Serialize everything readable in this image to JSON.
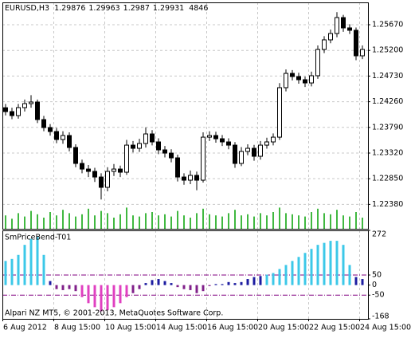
{
  "chart_data": [
    {
      "type": "candlestick",
      "title": "EURUSD,H3",
      "last_bar": {
        "open": 1.29876,
        "high": 1.29963,
        "low": 1.2987,
        "close": 1.29931,
        "volume": 4846
      },
      "open": [
        1.2415,
        1.24079,
        1.24006,
        1.24152,
        1.24225,
        1.24254,
        1.23933,
        1.23787,
        1.23714,
        1.23568,
        1.23641,
        1.23422,
        1.2313,
        1.23027,
        1.22984,
        1.22881,
        1.22692,
        1.22984,
        1.23027,
        1.22969,
        1.23465,
        1.23407,
        1.23495,
        1.2367,
        1.23524,
        1.23378,
        1.23319,
        1.23232,
        1.22881,
        1.22823,
        1.22911,
        1.22823,
        1.23611,
        1.23641,
        1.23582,
        1.23524,
        1.23465,
        1.2313,
        1.23349,
        1.23407,
        1.23261,
        1.23465,
        1.23524,
        1.23611,
        1.24517,
        1.24779,
        1.24721,
        1.24663,
        1.24604,
        1.24736,
        1.25217,
        1.25393,
        1.25509,
        1.25801,
        1.25612,
        1.25568,
        1.25101
      ],
      "high": [
        1.2422,
        1.2415,
        1.2422,
        1.243,
        1.2438,
        1.243,
        1.24,
        1.2385,
        1.2378,
        1.2372,
        1.237,
        1.2348,
        1.232,
        1.231,
        1.2305,
        1.2295,
        1.2306,
        1.2312,
        1.2309,
        1.2356,
        1.2354,
        1.2358,
        1.2379,
        1.2374,
        1.2359,
        1.2345,
        1.2339,
        1.2329,
        1.2295,
        1.23,
        1.2298,
        1.237,
        1.2372,
        1.2371,
        1.2365,
        1.2359,
        1.2352,
        1.2343,
        1.2348,
        1.2347,
        1.2354,
        1.236,
        1.2368,
        1.246,
        1.2485,
        1.2484,
        1.2479,
        1.2472,
        1.2481,
        1.2529,
        1.2546,
        1.2558,
        1.259,
        1.2585,
        1.2568,
        1.2562,
        1.2529
      ],
      "low": [
        1.2401,
        1.2394,
        1.2395,
        1.2408,
        1.2415,
        1.2387,
        1.2372,
        1.2364,
        1.235,
        1.2349,
        1.2335,
        1.2306,
        1.2295,
        1.2288,
        1.2279,
        1.2247,
        1.2262,
        1.229,
        1.2288,
        1.2292,
        1.2333,
        1.2334,
        1.2342,
        1.2346,
        1.233,
        1.2324,
        1.2315,
        1.228,
        1.2274,
        1.2275,
        1.2264,
        1.2278,
        1.2354,
        1.2351,
        1.2345,
        1.2339,
        1.2305,
        1.2308,
        1.2328,
        1.2318,
        1.232,
        1.234,
        1.2346,
        1.2356,
        1.2445,
        1.2465,
        1.2459,
        1.2453,
        1.2454,
        1.2468,
        1.2515,
        1.2533,
        1.2544,
        1.2554,
        1.255,
        1.2502,
        1.2504
      ],
      "close": [
        1.24079,
        1.24006,
        1.24152,
        1.24225,
        1.24254,
        1.23933,
        1.23787,
        1.23714,
        1.23568,
        1.23641,
        1.23422,
        1.2313,
        1.23027,
        1.22984,
        1.22881,
        1.22692,
        1.22984,
        1.23027,
        1.22969,
        1.23465,
        1.23407,
        1.23495,
        1.2367,
        1.23524,
        1.23378,
        1.23319,
        1.23232,
        1.22881,
        1.22823,
        1.22911,
        1.22823,
        1.23611,
        1.23641,
        1.23582,
        1.23524,
        1.23465,
        1.2313,
        1.23349,
        1.23407,
        1.23261,
        1.23465,
        1.23524,
        1.23611,
        1.24517,
        1.24779,
        1.24721,
        1.24663,
        1.24604,
        1.24736,
        1.25217,
        1.25393,
        1.25509,
        1.25801,
        1.25612,
        1.25568,
        1.25101,
        1.25217
      ],
      "volume": [
        60,
        45,
        70,
        55,
        80,
        65,
        50,
        75,
        60,
        85,
        70,
        55,
        65,
        90,
        60,
        80,
        70,
        50,
        65,
        95,
        60,
        55,
        70,
        75,
        60,
        65,
        55,
        80,
        60,
        50,
        70,
        90,
        65,
        60,
        55,
        70,
        85,
        60,
        65,
        55,
        70,
        60,
        75,
        95,
        70,
        65,
        60,
        55,
        75,
        90,
        70,
        65,
        85,
        60,
        55,
        75,
        50
      ],
      "volume_lim": [
        0,
        100
      ],
      "volume_color": "#00a000",
      "up_color": "#ffffff",
      "down_color": "#000000",
      "ylim": [
        1.21933,
        1.26079
      ],
      "yticks": [
        {
          "value": 1.2567,
          "label": "1.25670"
        },
        {
          "value": 1.252,
          "label": "1.25200"
        },
        {
          "value": 1.2473,
          "label": "1.24730"
        },
        {
          "value": 1.2426,
          "label": "1.24260"
        },
        {
          "value": 1.2379,
          "label": "1.23790"
        },
        {
          "value": 1.2332,
          "label": "1.23320"
        },
        {
          "value": 1.2285,
          "label": "1.22850"
        },
        {
          "value": 1.2238,
          "label": "1.22380"
        }
      ],
      "grid": true
    },
    {
      "type": "bar",
      "title": "SmPriceBend-T01",
      "categories": [
        "6 Aug 2012",
        null,
        null,
        null,
        null,
        null,
        null,
        null,
        "8 Aug 15:00",
        null,
        null,
        null,
        null,
        null,
        null,
        null,
        "10 Aug 15:00",
        null,
        null,
        null,
        null,
        null,
        null,
        null,
        "14 Aug 15:00",
        null,
        null,
        null,
        null,
        null,
        null,
        null,
        "16 Aug 15:00",
        null,
        null,
        null,
        null,
        null,
        null,
        null,
        "20 Aug 15:00",
        null,
        null,
        null,
        null,
        null,
        null,
        null,
        "22 Aug 15:00",
        null,
        null,
        null,
        null,
        null,
        null,
        null,
        "24 Aug 15:00"
      ],
      "values": [
        120,
        130,
        150,
        200,
        230,
        240,
        150,
        20,
        -20,
        -25,
        -20,
        -30,
        -60,
        -90,
        -110,
        -130,
        -125,
        -110,
        -90,
        -60,
        -40,
        -20,
        10,
        25,
        30,
        20,
        10,
        -10,
        -20,
        -25,
        -40,
        -30,
        -5,
        5,
        5,
        15,
        10,
        15,
        30,
        40,
        45,
        52,
        60,
        80,
        100,
        120,
        140,
        160,
        180,
        200,
        210,
        220,
        220,
        200,
        100,
        40,
        30
      ],
      "ylim": [
        -168,
        272
      ],
      "yticks": [
        272,
        50,
        0,
        -50,
        -168
      ],
      "levels": [
        50,
        -50
      ],
      "level_color": "#800080",
      "colors": {
        "above": "#3cc8e8",
        "positive": "#1c1ca0",
        "negative": "#80208a",
        "below": "#e040c0"
      },
      "grid": true
    }
  ],
  "footer": "Alpari NZ MT5, © 2001-2013, MetaQuotes Software Corp."
}
